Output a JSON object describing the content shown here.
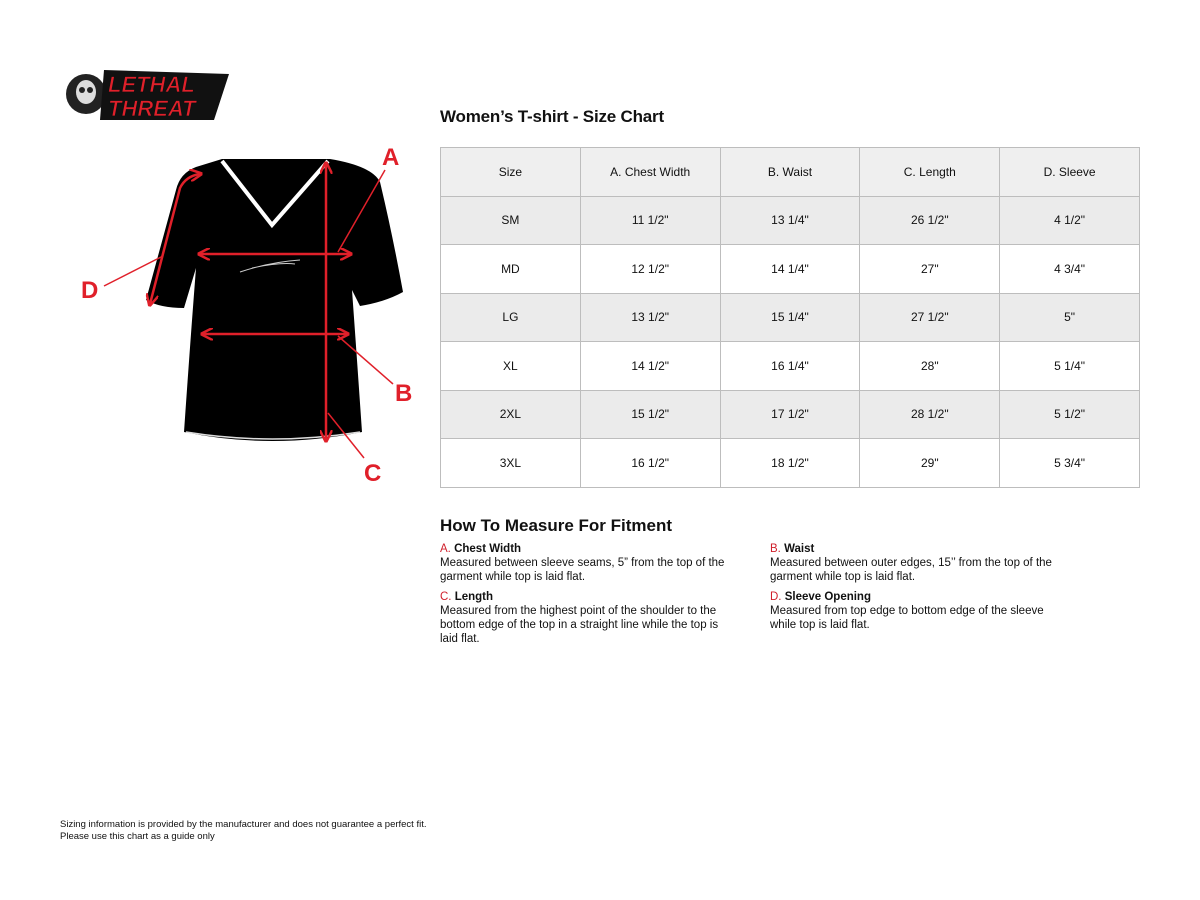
{
  "logo": {
    "text": "LETHAL THREAT",
    "color": "#e0202a"
  },
  "illustration": {
    "labels": {
      "a": "A",
      "b": "B",
      "c": "C",
      "d": "D"
    },
    "accent": "#e0202a"
  },
  "title": "Women’s T-shirt - Size Chart",
  "table": {
    "headers": [
      "Size",
      "A. Chest Width",
      "B. Waist",
      "C. Length",
      "D. Sleeve"
    ],
    "rows": [
      [
        "SM",
        "11 1/2\"",
        "13 1/4\"",
        "26 1/2\"",
        "4 1/2\""
      ],
      [
        "MD",
        "12 1/2\"",
        "14 1/4\"",
        "27\"",
        "4 3/4\""
      ],
      [
        "LG",
        "13 1/2\"",
        "15 1/4\"",
        "27 1/2\"",
        "5\""
      ],
      [
        "XL",
        "14 1/2\"",
        "16 1/4\"",
        "28\"",
        "5 1/4\""
      ],
      [
        "2XL",
        "15 1/2\"",
        "17 1/2\"",
        "28 1/2\"",
        "5 1/2\""
      ],
      [
        "3XL",
        "16 1/2\"",
        "18 1/2\"",
        "29\"",
        "5 3/4\""
      ]
    ]
  },
  "howto": {
    "title": "How To Measure For Fitment",
    "items": [
      {
        "key": "A.",
        "name": "Chest Width",
        "text": "Measured between sleeve seams, 5” from the top of the garment while top is laid flat."
      },
      {
        "key": "B.",
        "name": "Waist",
        "text": "Measured between outer edges, 15’’ from the top of the garment while top is laid flat."
      },
      {
        "key": "C.",
        "name": "Length",
        "text": "Measured from the highest point of the shoulder to the bottom edge of the top in a straight line while the top is laid flat."
      },
      {
        "key": "D.",
        "name": "Sleeve Opening",
        "text": "Measured from top edge to bottom edge of the sleeve while top is laid flat."
      }
    ]
  },
  "footer": {
    "line1": "Sizing information is provided by the manufacturer and does not guarantee a perfect fit.",
    "line2": "Please use this chart as a guide only"
  }
}
